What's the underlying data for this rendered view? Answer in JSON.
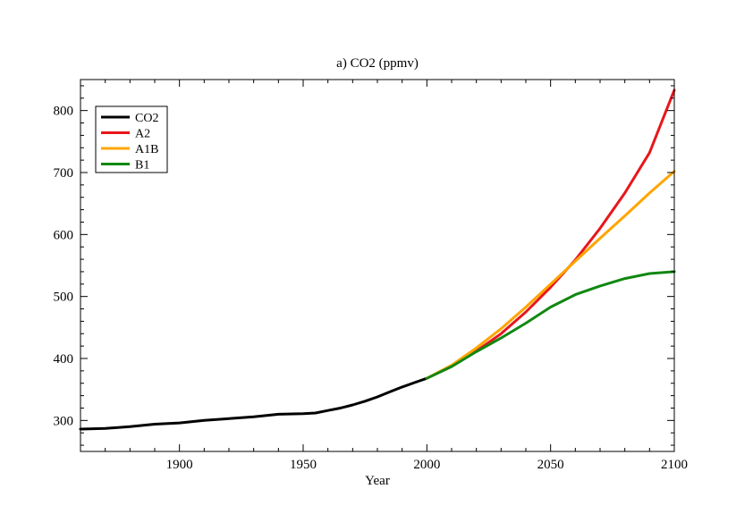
{
  "chart_data": {
    "type": "line",
    "title": "a) CO2 (ppmv)",
    "xlabel": "Year",
    "ylabel": "",
    "xlim": [
      1860,
      2100
    ],
    "ylim": [
      250,
      850
    ],
    "xticks": [
      1900,
      1950,
      2000,
      2050,
      2100
    ],
    "yticks": [
      300,
      400,
      500,
      600,
      700,
      800
    ],
    "grid": false,
    "legend_position": "top-left",
    "series": [
      {
        "name": "CO2",
        "color": "#000000",
        "x": [
          1860,
          1870,
          1880,
          1890,
          1900,
          1910,
          1920,
          1930,
          1940,
          1950,
          1955,
          1960,
          1965,
          1970,
          1975,
          1980,
          1985,
          1990,
          1995,
          2000
        ],
        "y": [
          286,
          287,
          290,
          294,
          296,
          300,
          303,
          306,
          310,
          311,
          312,
          316,
          320,
          325,
          331,
          338,
          346,
          354,
          361,
          368
        ]
      },
      {
        "name": "A2",
        "color": "#e8161b",
        "x": [
          2000,
          2010,
          2020,
          2030,
          2040,
          2050,
          2060,
          2070,
          2080,
          2090,
          2100
        ],
        "y": [
          368,
          387,
          412,
          440,
          475,
          515,
          559,
          610,
          667,
          732,
          833
        ]
      },
      {
        "name": "A1B",
        "color": "#ffa500",
        "x": [
          2000,
          2010,
          2020,
          2030,
          2040,
          2050,
          2060,
          2070,
          2080,
          2090,
          2100
        ],
        "y": [
          368,
          389,
          417,
          448,
          483,
          520,
          557,
          594,
          630,
          667,
          702
        ]
      },
      {
        "name": "B1",
        "color": "#118811",
        "x": [
          2000,
          2010,
          2020,
          2030,
          2040,
          2050,
          2060,
          2070,
          2080,
          2090,
          2100
        ],
        "y": [
          368,
          387,
          411,
          433,
          457,
          483,
          503,
          517,
          529,
          537,
          540
        ]
      }
    ]
  }
}
